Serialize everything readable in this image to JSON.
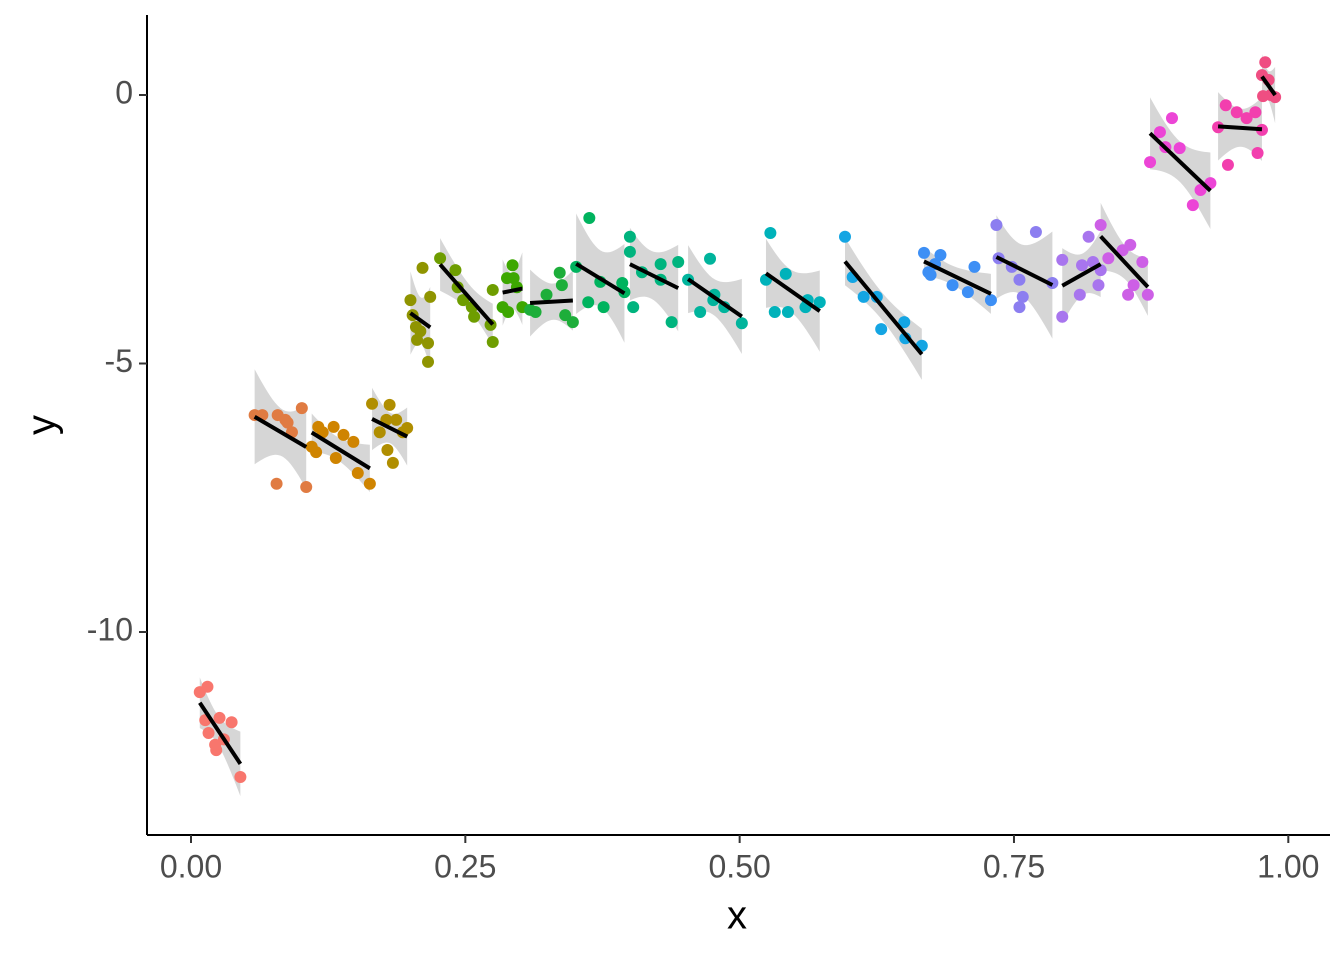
{
  "chart_data": {
    "type": "scatter",
    "x_label": "x",
    "y_label": "y",
    "xlim": [
      -0.0401,
      1.038
    ],
    "ylim": [
      -13.78,
      1.49
    ],
    "xticks": [
      {
        "value": 0,
        "label": "0.00"
      },
      {
        "value": 0.25,
        "label": "0.25"
      },
      {
        "value": 0.5,
        "label": "0.50"
      },
      {
        "value": 0.75,
        "label": "0.75"
      },
      {
        "value": 1,
        "label": "1.00"
      }
    ],
    "yticks": [
      -10,
      -5,
      0
    ],
    "fit_line_color": "#000000",
    "ribbon_color": "#999999",
    "series": [
      {
        "color": "#F8766D",
        "x": [
          0.008,
          0.015,
          0.013,
          0.016,
          0.023,
          0.022,
          0.026,
          0.037,
          0.045,
          0.03
        ],
        "y": [
          -11.12,
          -11.02,
          -11.64,
          -11.88,
          -12.2,
          -12.1,
          -11.6,
          -11.68,
          -12.7,
          -12.0
        ]
      },
      {
        "color": "#E07B42",
        "x": [
          0.058,
          0.065,
          0.079,
          0.086,
          0.092,
          0.101,
          0.078,
          0.105,
          0.088
        ],
        "y": [
          -5.96,
          -5.96,
          -5.96,
          -6.05,
          -6.28,
          -5.83,
          -7.24,
          -7.3,
          -6.1
        ]
      },
      {
        "color": "#CF8400",
        "x": [
          0.11,
          0.116,
          0.12,
          0.13,
          0.132,
          0.139,
          0.148,
          0.152,
          0.163,
          0.114
        ],
        "y": [
          -6.55,
          -6.18,
          -6.28,
          -6.18,
          -6.76,
          -6.33,
          -6.46,
          -7.04,
          -7.24,
          -6.65
        ]
      },
      {
        "color": "#B08E00",
        "x": [
          0.165,
          0.172,
          0.178,
          0.181,
          0.179,
          0.184,
          0.187,
          0.193,
          0.197
        ],
        "y": [
          -5.75,
          -6.28,
          -6.05,
          -5.77,
          -6.61,
          -6.85,
          -6.05,
          -6.28,
          -6.2
        ]
      },
      {
        "color": "#8F9400",
        "x": [
          0.2,
          0.202,
          0.205,
          0.206,
          0.211,
          0.218,
          0.216,
          0.216,
          0.209
        ],
        "y": [
          -3.82,
          -4.1,
          -4.32,
          -4.56,
          -3.22,
          -3.76,
          -4.62,
          -4.97,
          -4.4
        ]
      },
      {
        "color": "#6E9D00",
        "x": [
          0.227,
          0.241,
          0.243,
          0.256,
          0.258,
          0.275,
          0.275,
          0.248,
          0.273
        ],
        "y": [
          -3.04,
          -3.26,
          -3.58,
          -3.95,
          -4.13,
          -3.63,
          -4.6,
          -3.82,
          -4.28
        ]
      },
      {
        "color": "#3DA700",
        "x": [
          0.284,
          0.288,
          0.293,
          0.294,
          0.297,
          0.302,
          0.289
        ],
        "y": [
          -3.95,
          -3.41,
          -3.17,
          -3.41,
          -3.58,
          -3.95,
          -4.04
        ]
      },
      {
        "color": "#1DAE3A",
        "x": [
          0.309,
          0.314,
          0.324,
          0.336,
          0.338,
          0.341,
          0.348
        ],
        "y": [
          -4.0,
          -4.04,
          -3.72,
          -3.31,
          -3.54,
          -4.1,
          -4.23
        ]
      },
      {
        "color": "#00B35E",
        "x": [
          0.351,
          0.363,
          0.362,
          0.376,
          0.373,
          0.393,
          0.395
        ],
        "y": [
          -3.2,
          -2.29,
          -3.86,
          -3.95,
          -3.48,
          -3.5,
          -3.67
        ]
      },
      {
        "color": "#00B47E",
        "x": [
          0.4,
          0.4,
          0.403,
          0.411,
          0.428,
          0.428,
          0.438,
          0.444
        ],
        "y": [
          -2.64,
          -2.92,
          -3.95,
          -3.3,
          -3.15,
          -3.44,
          -4.23,
          -3.11
        ]
      },
      {
        "color": "#00B49C",
        "x": [
          0.453,
          0.464,
          0.473,
          0.476,
          0.486,
          0.502,
          0.477
        ],
        "y": [
          -3.44,
          -4.04,
          -3.05,
          -3.82,
          -3.95,
          -4.25,
          -3.72
        ]
      },
      {
        "color": "#00B2BA",
        "x": [
          0.528,
          0.524,
          0.532,
          0.542,
          0.544,
          0.56,
          0.562,
          0.573
        ],
        "y": [
          -2.57,
          -3.44,
          -4.04,
          -3.33,
          -4.04,
          -3.95,
          -3.82,
          -3.86
        ]
      },
      {
        "color": "#14A5E3",
        "x": [
          0.596,
          0.603,
          0.613,
          0.625,
          0.629,
          0.65,
          0.651,
          0.666
        ],
        "y": [
          -2.64,
          -3.39,
          -3.76,
          -3.76,
          -4.36,
          -4.23,
          -4.53,
          -4.67
        ]
      },
      {
        "color": "#3D8FF5",
        "x": [
          0.668,
          0.672,
          0.678,
          0.683,
          0.694,
          0.708,
          0.714,
          0.729,
          0.674
        ],
        "y": [
          -2.94,
          -3.3,
          -3.15,
          -2.98,
          -3.54,
          -3.67,
          -3.2,
          -3.82,
          -3.35
        ]
      },
      {
        "color": "#8C7EF0",
        "x": [
          0.734,
          0.736,
          0.748,
          0.755,
          0.755,
          0.758,
          0.77,
          0.785
        ],
        "y": [
          -2.42,
          -3.04,
          -3.2,
          -3.44,
          -3.95,
          -3.76,
          -2.55,
          -3.5
        ]
      },
      {
        "color": "#A875EE",
        "x": [
          0.794,
          0.794,
          0.81,
          0.812,
          0.818,
          0.822,
          0.827,
          0.829
        ],
        "y": [
          -3.07,
          -4.13,
          -3.72,
          -3.17,
          -2.64,
          -3.11,
          -3.54,
          -3.26
        ]
      },
      {
        "color": "#CD5FE6",
        "x": [
          0.829,
          0.836,
          0.849,
          0.856,
          0.854,
          0.859,
          0.867,
          0.872
        ],
        "y": [
          -2.42,
          -3.04,
          -2.89,
          -2.79,
          -3.72,
          -3.54,
          -3.11,
          -3.72
        ]
      },
      {
        "color": "#EC45D6",
        "x": [
          0.874,
          0.883,
          0.894,
          0.901,
          0.888,
          0.913,
          0.92,
          0.929
        ],
        "y": [
          -1.25,
          -0.69,
          -0.43,
          -0.99,
          -0.97,
          -2.05,
          -1.77,
          -1.64
        ]
      },
      {
        "color": "#F23FAE",
        "x": [
          0.936,
          0.943,
          0.945,
          0.953,
          0.962,
          0.97,
          0.972,
          0.976
        ],
        "y": [
          -0.6,
          -0.19,
          -1.3,
          -0.32,
          -0.43,
          -0.32,
          -1.08,
          -0.65
        ]
      },
      {
        "color": "#EF4E82",
        "x": [
          0.979,
          0.976,
          0.982,
          0.984,
          0.988,
          0.977
        ],
        "y": [
          0.61,
          0.37,
          0.28,
          0,
          -0.04,
          -0.02
        ]
      }
    ]
  }
}
